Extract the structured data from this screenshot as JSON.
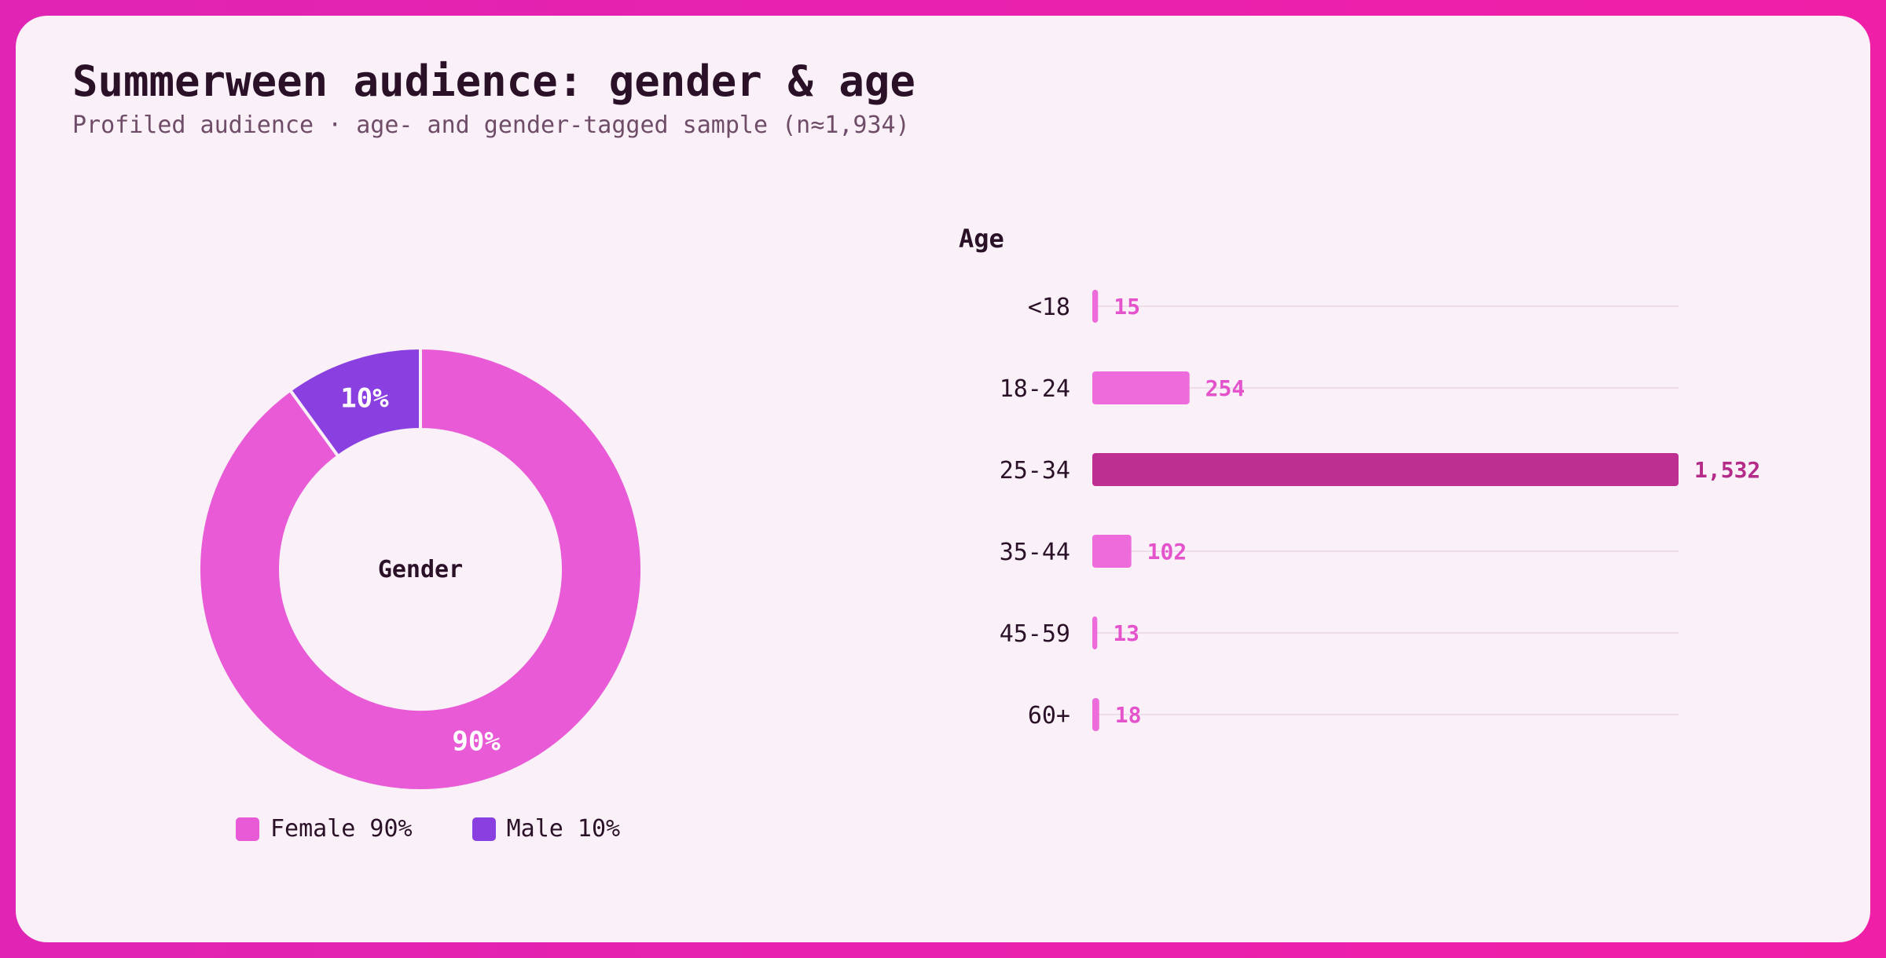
{
  "header": {
    "title": "Summerween audience: gender & age",
    "subtitle": "Profiled audience · age- and gender-tagged sample (n≈1,934)"
  },
  "chart_data": [
    {
      "type": "pie",
      "donut": true,
      "center_label": "Gender",
      "slices": [
        {
          "name": "Female",
          "value": 90,
          "label": "90%",
          "legend": "Female 90%",
          "color": "#e95bd6"
        },
        {
          "name": "Male",
          "value": 10,
          "label": "10%",
          "legend": "Male 10%",
          "color": "#8a3fe0"
        }
      ],
      "legend_placement": "bottom"
    },
    {
      "type": "bar",
      "orientation": "horizontal",
      "title": "Age",
      "categories": [
        "<18",
        "18-24",
        "25-34",
        "35-44",
        "45-59",
        "60+"
      ],
      "values": [
        15,
        254,
        1532,
        102,
        13,
        18
      ],
      "value_labels": [
        "15",
        "254",
        "1,532",
        "102",
        "13",
        "18"
      ],
      "xlim": [
        0,
        1532
      ],
      "colors": {
        "default": "#ed6bdb",
        "highlight": "#bd2f91",
        "label_default": "#e452cc",
        "label_highlight": "#b42b89",
        "track": "#efdcea"
      },
      "highlight_index": 2
    }
  ]
}
